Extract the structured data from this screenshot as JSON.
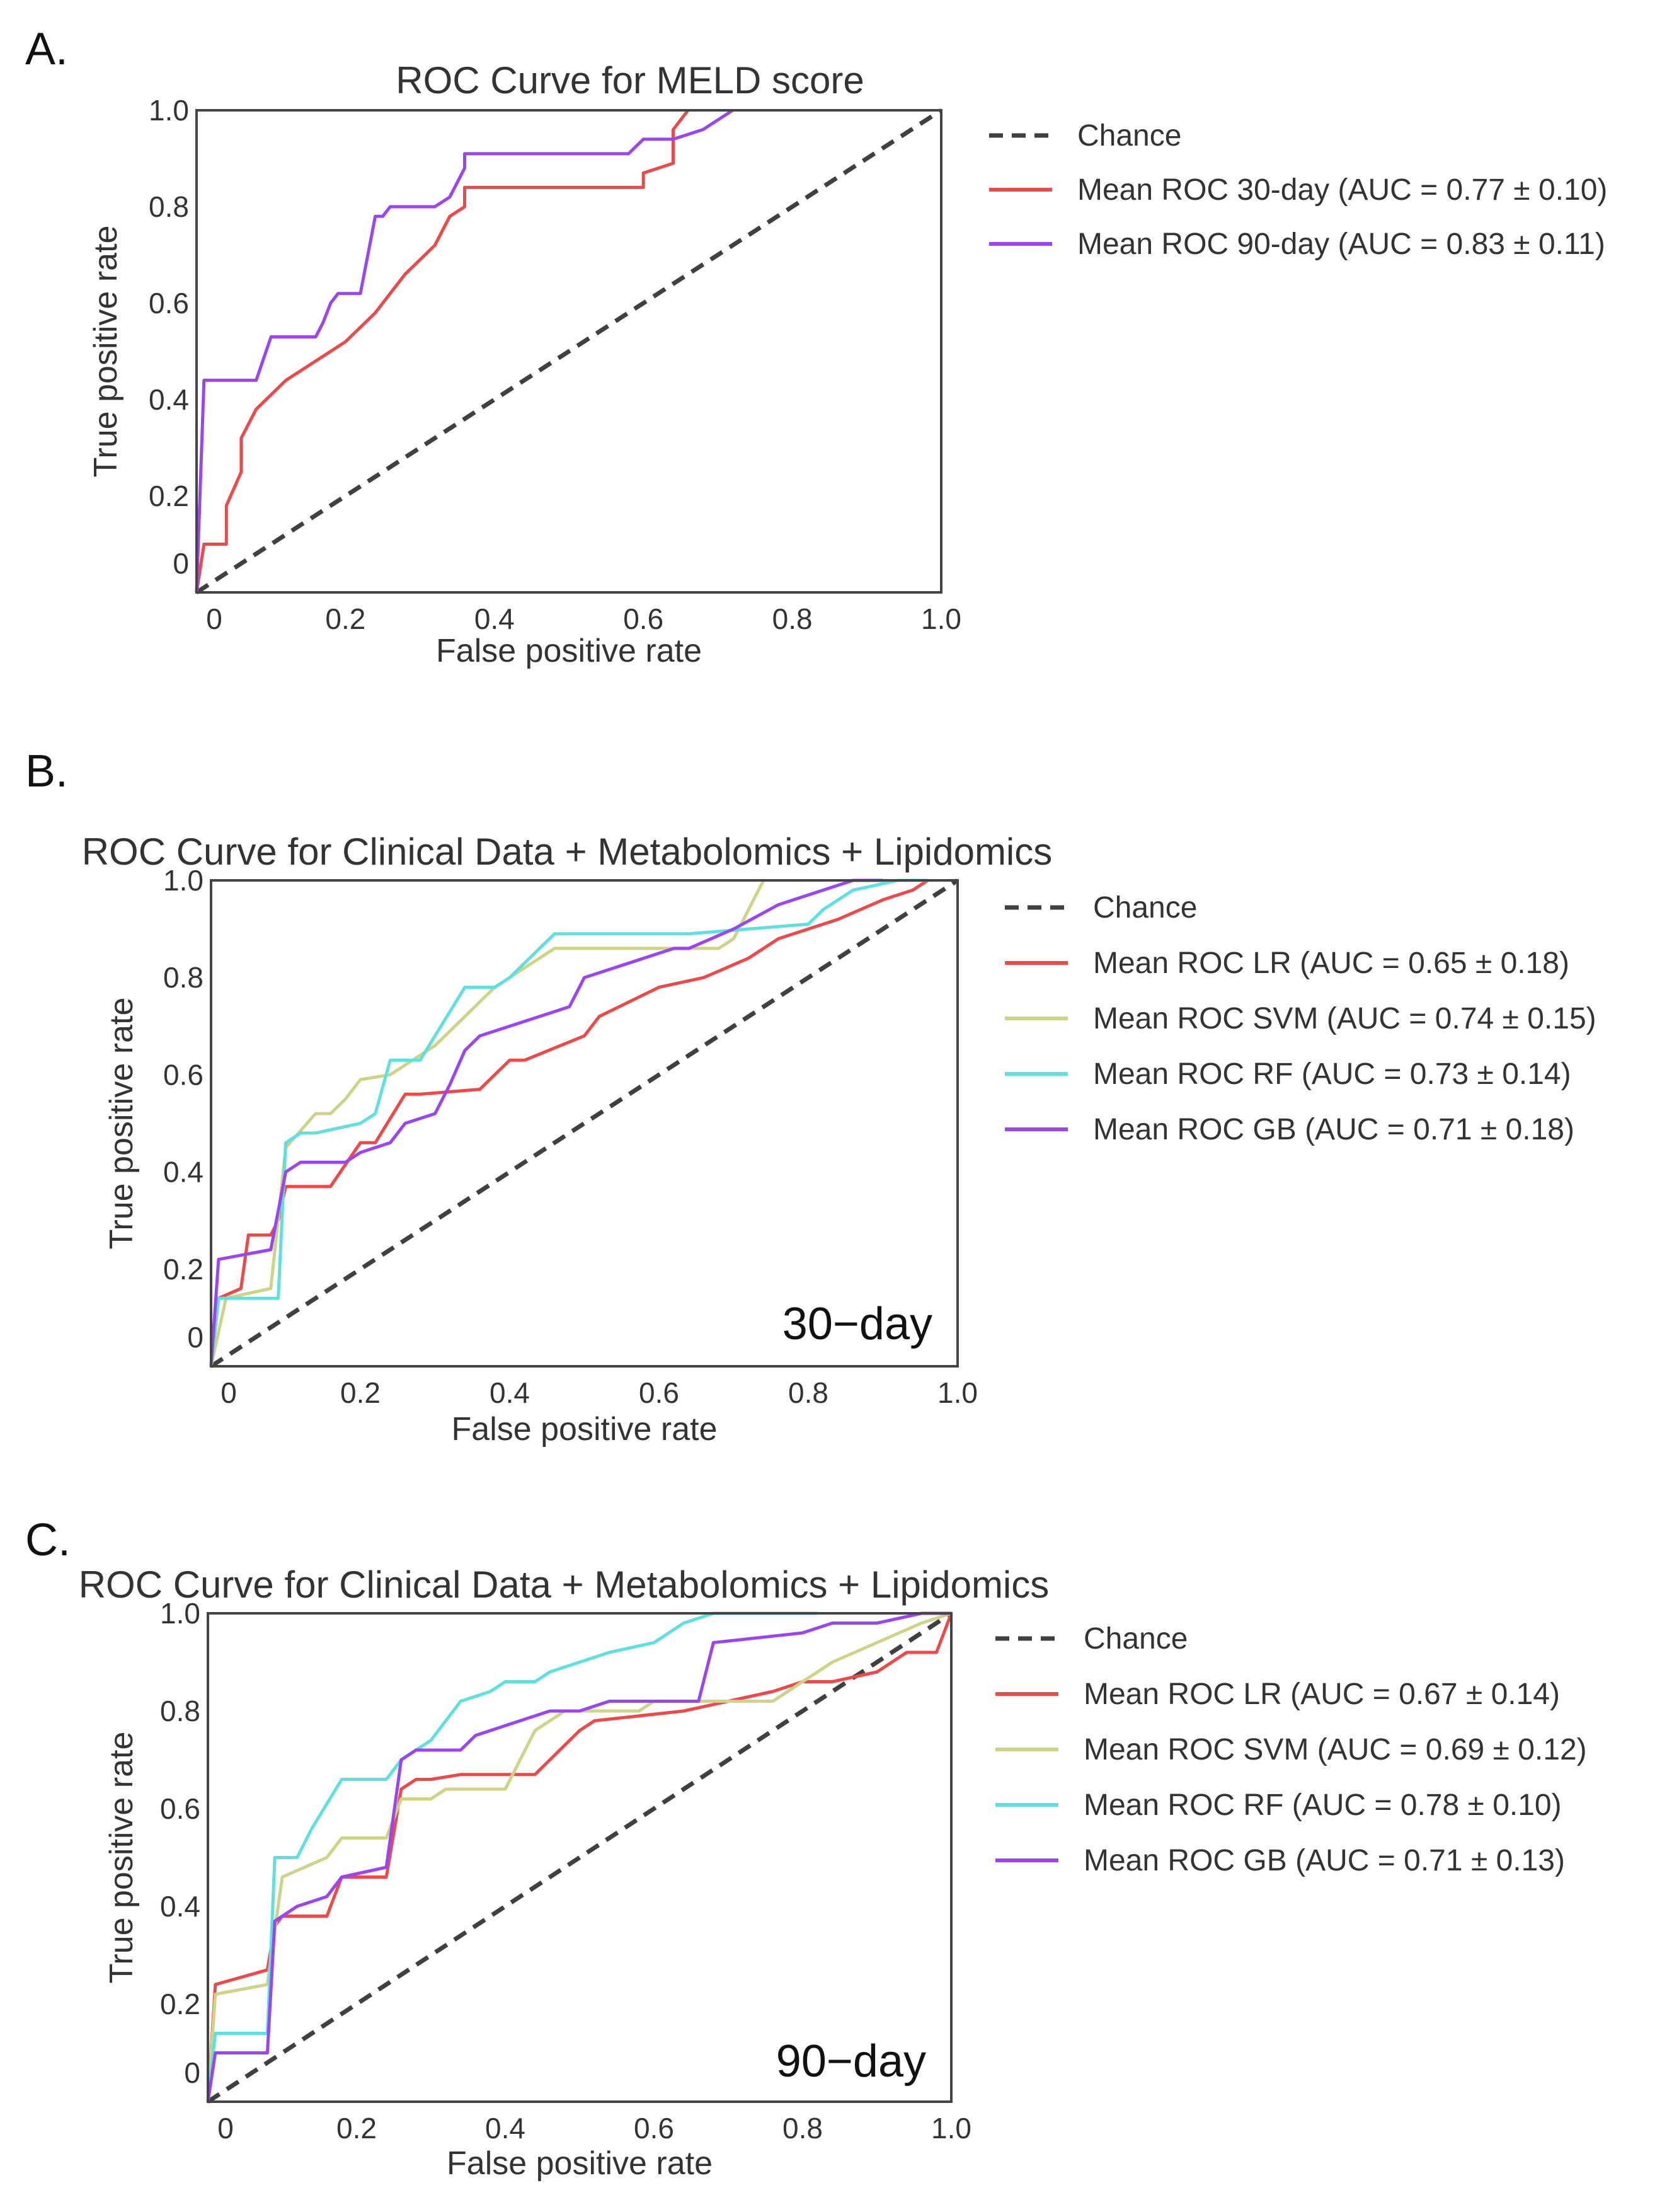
{
  "chart_data": [
    {
      "type": "line",
      "panel_label": "A.",
      "title": "ROC Curve for MELD score",
      "xlabel": "False positive rate",
      "ylabel": "True positive rate",
      "xlim": [
        0,
        1
      ],
      "ylim": [
        0,
        1
      ],
      "xticks": [
        "0",
        "0.2",
        "0.4",
        "0.6",
        "0.8",
        "1.0"
      ],
      "yticks": [
        "0",
        "0.2",
        "0.4",
        "0.6",
        "0.8",
        "1.0"
      ],
      "legend_position": "right",
      "series": [
        {
          "name": "Chance",
          "color": "#404040",
          "dashed": true,
          "x": [
            0,
            1
          ],
          "y": [
            0,
            1
          ]
        },
        {
          "name": "Mean ROC 30-day  (AUC = 0.77 ± 0.10)",
          "color": "#f04848",
          "x": [
            0,
            0.01,
            0.04,
            0.04,
            0.06,
            0.06,
            0.08,
            0.1,
            0.12,
            0.14,
            0.16,
            0.18,
            0.2,
            0.22,
            0.24,
            0.26,
            0.28,
            0.3,
            0.32,
            0.34,
            0.36,
            0.36,
            0.6,
            0.6,
            0.64,
            0.64,
            0.65,
            0.66
          ],
          "y": [
            0,
            0.1,
            0.1,
            0.18,
            0.25,
            0.32,
            0.38,
            0.41,
            0.44,
            0.46,
            0.48,
            0.5,
            0.52,
            0.55,
            0.58,
            0.62,
            0.66,
            0.69,
            0.72,
            0.78,
            0.8,
            0.84,
            0.84,
            0.87,
            0.89,
            0.96,
            0.98,
            1.0
          ]
        },
        {
          "name": "Mean ROC 90-day (AUC = 0.83 ± 0.11)",
          "color": "#9b45f2",
          "x": [
            0,
            0.01,
            0.08,
            0.1,
            0.16,
            0.17,
            0.18,
            0.19,
            0.22,
            0.24,
            0.25,
            0.26,
            0.32,
            0.34,
            0.36,
            0.36,
            0.58,
            0.6,
            0.64,
            0.68,
            0.7,
            0.72
          ],
          "y": [
            0,
            0.44,
            0.44,
            0.53,
            0.53,
            0.56,
            0.6,
            0.62,
            0.62,
            0.78,
            0.78,
            0.8,
            0.8,
            0.82,
            0.88,
            0.91,
            0.91,
            0.94,
            0.94,
            0.96,
            0.98,
            1.0
          ]
        }
      ],
      "annotation": ""
    },
    {
      "type": "line",
      "panel_label": "B.",
      "title": "ROC Curve for Clinical Data + Metabolomics + Lipidomics",
      "xlabel": "False positive rate",
      "ylabel": "True positive rate",
      "xlim": [
        0,
        1
      ],
      "ylim": [
        0,
        1
      ],
      "xticks": [
        "0",
        "0.2",
        "0.4",
        "0.6",
        "0.8",
        "1.0"
      ],
      "yticks": [
        "0",
        "0.2",
        "0.4",
        "0.6",
        "0.8",
        "1.0"
      ],
      "legend_position": "right",
      "series": [
        {
          "name": "Chance",
          "color": "#404040",
          "dashed": true,
          "x": [
            0,
            1
          ],
          "y": [
            0,
            1
          ]
        },
        {
          "name": "Mean ROC LR (AUC = 0.65 ± 0.18)",
          "color": "#f04848",
          "x": [
            0,
            0.01,
            0.04,
            0.05,
            0.08,
            0.09,
            0.1,
            0.12,
            0.16,
            0.2,
            0.22,
            0.26,
            0.28,
            0.36,
            0.4,
            0.42,
            0.5,
            0.52,
            0.6,
            0.66,
            0.72,
            0.76,
            0.8,
            0.84,
            0.9,
            0.94,
            0.96
          ],
          "y": [
            0,
            0.14,
            0.16,
            0.27,
            0.27,
            0.3,
            0.37,
            0.37,
            0.37,
            0.46,
            0.46,
            0.56,
            0.56,
            0.57,
            0.63,
            0.63,
            0.68,
            0.72,
            0.78,
            0.8,
            0.84,
            0.88,
            0.9,
            0.92,
            0.96,
            0.98,
            1.0
          ]
        },
        {
          "name": "Mean ROC SVM (AUC = 0.74 ± 0.15)",
          "color": "#cdd488",
          "x": [
            0,
            0.02,
            0.08,
            0.1,
            0.14,
            0.16,
            0.18,
            0.2,
            0.24,
            0.26,
            0.3,
            0.34,
            0.38,
            0.4,
            0.44,
            0.46,
            0.5,
            0.68,
            0.7,
            0.72,
            0.74
          ],
          "y": [
            0,
            0.14,
            0.16,
            0.45,
            0.52,
            0.52,
            0.55,
            0.59,
            0.6,
            0.62,
            0.66,
            0.72,
            0.78,
            0.8,
            0.84,
            0.86,
            0.86,
            0.86,
            0.88,
            0.94,
            1.0
          ]
        },
        {
          "name": "Mean ROC RF (AUC = 0.73 ± 0.14)",
          "color": "#5fe0e0",
          "x": [
            0,
            0.01,
            0.09,
            0.1,
            0.12,
            0.14,
            0.2,
            0.22,
            0.24,
            0.28,
            0.3,
            0.34,
            0.38,
            0.4,
            0.44,
            0.46,
            0.48,
            0.64,
            0.8,
            0.82,
            0.86,
            0.92,
            0.96
          ],
          "y": [
            0,
            0.14,
            0.14,
            0.46,
            0.48,
            0.48,
            0.5,
            0.52,
            0.63,
            0.63,
            0.68,
            0.78,
            0.78,
            0.8,
            0.86,
            0.89,
            0.89,
            0.89,
            0.91,
            0.94,
            0.98,
            1.0,
            1.0
          ]
        },
        {
          "name": "Mean ROC GB (AUC = 0.71 ± 0.18)",
          "color": "#9b45f2",
          "x": [
            0,
            0.01,
            0.08,
            0.1,
            0.12,
            0.18,
            0.2,
            0.24,
            0.26,
            0.3,
            0.32,
            0.34,
            0.36,
            0.48,
            0.5,
            0.62,
            0.64,
            0.7,
            0.76,
            0.82,
            0.86,
            0.9
          ],
          "y": [
            0,
            0.22,
            0.24,
            0.4,
            0.42,
            0.42,
            0.44,
            0.46,
            0.5,
            0.52,
            0.58,
            0.65,
            0.68,
            0.74,
            0.8,
            0.86,
            0.86,
            0.9,
            0.95,
            0.98,
            1.0,
            1.0
          ]
        }
      ],
      "annotation": "30−day"
    },
    {
      "type": "line",
      "panel_label": "C.",
      "title": "ROC Curve for Clinical Data + Metabolomics + Lipidomics",
      "xlabel": "False positive rate",
      "ylabel": "True positive rate",
      "xlim": [
        0,
        1
      ],
      "ylim": [
        0,
        1
      ],
      "xticks": [
        "0",
        "0.2",
        "0.4",
        "0.6",
        "0.8",
        "1.0"
      ],
      "yticks": [
        "0",
        "0.2",
        "0.4",
        "0.6",
        "0.8",
        "1.0"
      ],
      "legend_position": "right",
      "series": [
        {
          "name": "Chance",
          "color": "#404040",
          "dashed": true,
          "x": [
            0,
            1
          ],
          "y": [
            0,
            1
          ]
        },
        {
          "name": "Mean ROC LR (AUC = 0.67 ± 0.14)",
          "color": "#f04848",
          "x": [
            0,
            0.01,
            0.08,
            0.09,
            0.1,
            0.16,
            0.18,
            0.24,
            0.26,
            0.28,
            0.3,
            0.34,
            0.44,
            0.46,
            0.5,
            0.52,
            0.64,
            0.7,
            0.76,
            0.8,
            0.84,
            0.9,
            0.94,
            0.98,
            1.0
          ],
          "y": [
            0,
            0.24,
            0.27,
            0.36,
            0.38,
            0.38,
            0.46,
            0.46,
            0.64,
            0.66,
            0.66,
            0.67,
            0.67,
            0.7,
            0.76,
            0.78,
            0.8,
            0.82,
            0.84,
            0.86,
            0.86,
            0.88,
            0.92,
            0.92,
            1.0
          ]
        },
        {
          "name": "Mean ROC SVM (AUC = 0.69 ± 0.12)",
          "color": "#cdd488",
          "x": [
            0,
            0.01,
            0.08,
            0.1,
            0.16,
            0.18,
            0.24,
            0.26,
            0.3,
            0.32,
            0.4,
            0.42,
            0.44,
            0.48,
            0.58,
            0.6,
            0.76,
            0.8,
            0.84,
            0.9,
            0.96,
            1.0
          ],
          "y": [
            0,
            0.22,
            0.24,
            0.46,
            0.5,
            0.54,
            0.54,
            0.62,
            0.62,
            0.64,
            0.64,
            0.7,
            0.76,
            0.8,
            0.8,
            0.82,
            0.82,
            0.86,
            0.9,
            0.94,
            0.98,
            1.0
          ]
        },
        {
          "name": "Mean ROC RF (AUC = 0.78 ± 0.10)",
          "color": "#5fe0e0",
          "x": [
            0,
            0.01,
            0.08,
            0.09,
            0.12,
            0.14,
            0.18,
            0.2,
            0.24,
            0.26,
            0.3,
            0.34,
            0.38,
            0.4,
            0.44,
            0.46,
            0.54,
            0.6,
            0.64,
            0.68,
            0.8,
            0.82
          ],
          "y": [
            0,
            0.14,
            0.14,
            0.5,
            0.5,
            0.56,
            0.66,
            0.66,
            0.66,
            0.7,
            0.74,
            0.82,
            0.84,
            0.86,
            0.86,
            0.88,
            0.92,
            0.94,
            0.98,
            1.0,
            1.0,
            1.0
          ]
        },
        {
          "name": "Mean ROC GB (AUC = 0.71 ± 0.13)",
          "color": "#9b45f2",
          "x": [
            0,
            0.01,
            0.08,
            0.09,
            0.12,
            0.16,
            0.18,
            0.24,
            0.26,
            0.28,
            0.34,
            0.36,
            0.4,
            0.42,
            0.46,
            0.5,
            0.54,
            0.66,
            0.68,
            0.8,
            0.84,
            0.9,
            0.96,
            1.0
          ],
          "y": [
            0,
            0.1,
            0.1,
            0.37,
            0.4,
            0.42,
            0.46,
            0.48,
            0.7,
            0.72,
            0.72,
            0.75,
            0.77,
            0.78,
            0.8,
            0.8,
            0.82,
            0.82,
            0.94,
            0.96,
            0.98,
            0.98,
            1.0,
            1.0
          ]
        }
      ],
      "annotation": "90−day"
    }
  ]
}
